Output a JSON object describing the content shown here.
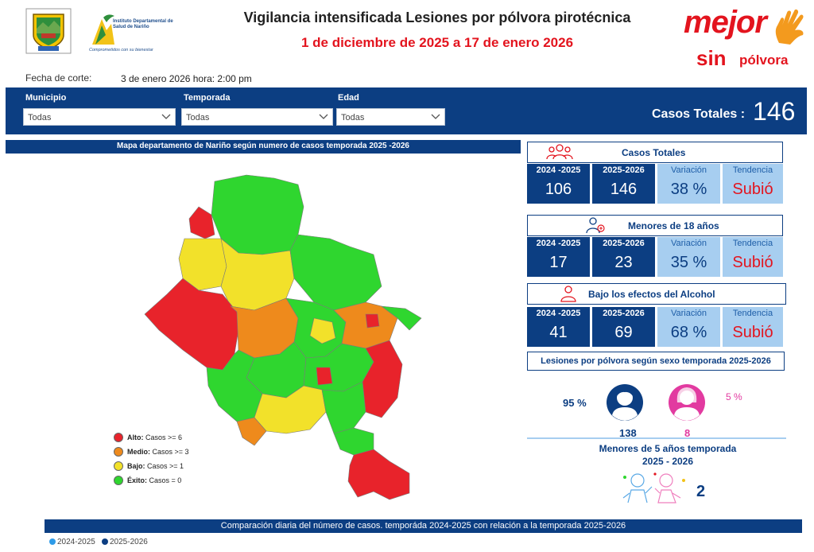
{
  "header": {
    "title": "Vigilancia intensificada Lesiones por pólvora pirotécnica",
    "subtitle": "1 de diciembre de 2025 a 17 de enero 2026",
    "cut_label": "Fecha de corte:",
    "cut_value": "3 de enero 2026  hora: 2:00 pm"
  },
  "logos": {
    "ids_name": "Instituto Departamental de Salud de Nariño",
    "ids_motto": "Comprometidos con su bienestar",
    "brand_word1": "mejor",
    "brand_word2": "sin",
    "brand_word3": "pólvora"
  },
  "filters": [
    {
      "label": "Municipio",
      "value": "Todas"
    },
    {
      "label": "Temporada",
      "value": "Todas"
    },
    {
      "label": "Edad",
      "value": "Todas"
    }
  ],
  "total": {
    "label": "Casos Totales :",
    "value": "146"
  },
  "map": {
    "title": "Mapa departamento de Nariño según numero de casos temporada 2025 -2026",
    "legend": [
      {
        "label": "Alto:",
        "rule": "Casos  >= 6",
        "color": "#e8232b"
      },
      {
        "label": "Medio:",
        "rule": "Casos >= 3",
        "color": "#ee8a1c"
      },
      {
        "label": "Bajo:",
        "rule": "Casos >= 1",
        "color": "#f2e12a"
      },
      {
        "label": "Éxito:",
        "rule": "Casos = 0",
        "color": "#2fd62f"
      }
    ],
    "colors": {
      "alto": "#e8232b",
      "medio": "#ee8a1c",
      "bajo": "#f2e12a",
      "exito": "#2fd62f"
    }
  },
  "kpis": [
    {
      "title": "Casos Totales",
      "icon": "group-icon",
      "prev_label": "2024 -2025",
      "prev_value": "106",
      "curr_label": "2025-2026",
      "curr_value": "146",
      "var_label": "Variación",
      "var_value": "38 %",
      "trend_label": "Tendencia",
      "trend_value": "Subió"
    },
    {
      "title": "Menores de 18 años",
      "icon": "child-person-icon",
      "prev_label": "2024 -2025",
      "prev_value": "17",
      "curr_label": "2025-2026",
      "curr_value": "23",
      "var_label": "Variación",
      "var_value": "35 %",
      "trend_label": "Tendencia",
      "trend_value": "Subió"
    },
    {
      "title": "Bajo los efectos del Alcohol",
      "icon": "person-icon",
      "prev_label": "2024 -2025",
      "prev_value": "41",
      "curr_label": "2025-2026",
      "curr_value": "69",
      "var_label": "Variación",
      "var_value": "68 %",
      "trend_label": "Tendencia",
      "trend_value": "Subió"
    }
  ],
  "sex": {
    "title": "Lesiones por pólvora según sexo temporada 2025-2026",
    "male_pct": "95 %",
    "male_count": "138",
    "female_pct": "5 %",
    "female_count": "8"
  },
  "under5": {
    "title_line1": "Menores de 5 años temporada",
    "title_line2": "2025 - 2026",
    "value": "2"
  },
  "comparison": {
    "title": "Comparación diaria del número de casos. temporáda 2024-2025 con relación a la temporada 2025-2026",
    "series": [
      {
        "name": "2024-2025",
        "color": "#2e9be8"
      },
      {
        "name": "2025-2026",
        "color": "#0c3e82"
      }
    ]
  }
}
